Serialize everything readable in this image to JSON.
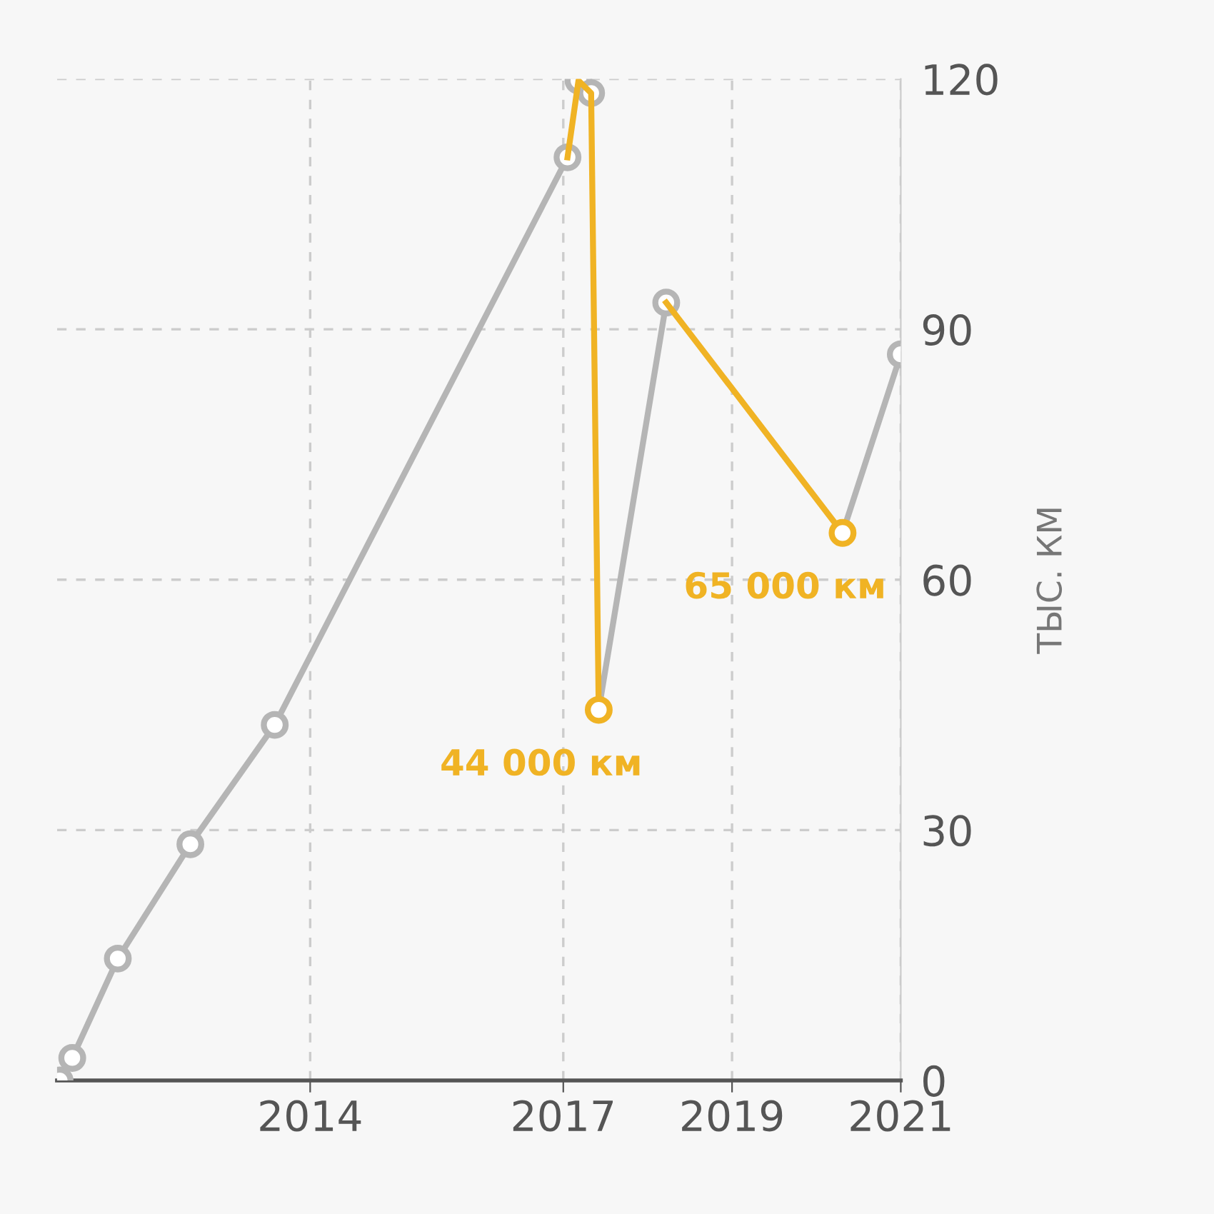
{
  "chart_data": {
    "type": "line",
    "ylabel": "ТЫС. КМ",
    "xlim": [
      2011,
      2021
    ],
    "xticks": [
      2014,
      2017,
      2019,
      2021
    ],
    "ylim": [
      0,
      120
    ],
    "yticks": [
      0,
      30,
      60,
      90,
      120
    ],
    "grid": true,
    "marker": "circle",
    "line_style": "solid",
    "series": [
      {
        "color": "#b5b5b5",
        "x": [
          2011.03,
          2011.18,
          2011.72,
          2012.58,
          2013.58,
          2017.05,
          2017.2,
          2017.42,
          2018.22,
          2019.3,
          2020.31,
          2021
        ],
        "values": [
          0,
          2.7,
          14.6,
          28.3,
          42.6,
          110.6,
          null,
          44.4,
          93.2,
          null,
          65.6,
          87.0
        ],
        "marker": "none"
      },
      {
        "color": "#f0b324",
        "x": [
          2017.05,
          2017.18,
          2017.33,
          2017.42,
          2017.8,
          2018.22,
          2020.31
        ],
        "values": [
          110.6,
          119.8,
          118.3,
          44.4,
          null,
          93.2,
          65.6
        ],
        "marker": "none"
      },
      {
        "type": "scatter",
        "color": "#b5b5b5",
        "x": [
          2011.03,
          2011.18,
          2011.72,
          2012.58,
          2013.58,
          2017.05,
          2017.18,
          2017.33,
          2018.22,
          2021
        ],
        "values": [
          0,
          2.7,
          14.6,
          28.3,
          42.6,
          110.6,
          119.8,
          118.3,
          93.2,
          87.0
        ]
      },
      {
        "type": "scatter",
        "color": "#f0b324",
        "x": [
          2017.42,
          2020.31
        ],
        "values": [
          44.4,
          65.6
        ]
      }
    ],
    "annotations": [
      {
        "text": "44 000 км",
        "x": 2017.42,
        "y": 44.4
      },
      {
        "text": "65 000 км",
        "x": 2020.31,
        "y": 65.6
      }
    ]
  }
}
